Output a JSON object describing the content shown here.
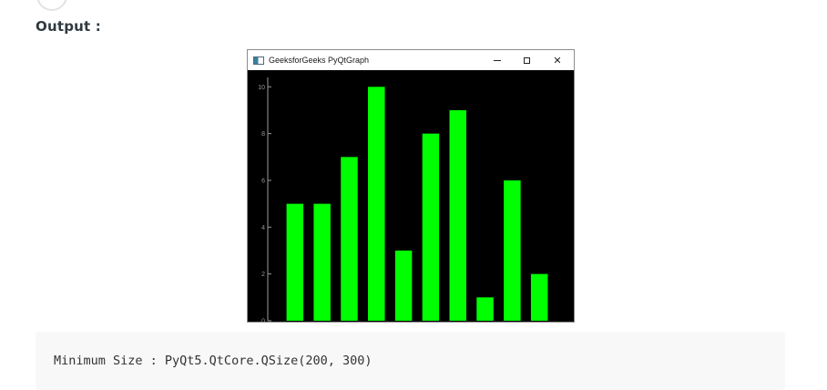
{
  "page": {
    "output_label": "Output :"
  },
  "window": {
    "title": "GeeksforGeeks PyQtGraph",
    "icon": "app-window-icon",
    "controls": {
      "minimize": "minimize-icon",
      "maximize": "maximize-icon",
      "close_label": "✕"
    }
  },
  "chart_data": {
    "type": "bar",
    "x": [
      1,
      2,
      3,
      4,
      5,
      6,
      7,
      8,
      9,
      10
    ],
    "values": [
      5,
      5,
      7,
      10,
      3,
      8,
      9,
      1,
      6,
      2
    ],
    "xlim": [
      0,
      11
    ],
    "ylim": [
      0,
      10.4
    ],
    "yticks": [
      0,
      2,
      4,
      6,
      8,
      10
    ],
    "bar_color": "#00ff00",
    "background": "#000000",
    "grid": false
  },
  "code": {
    "line": "Minimum Size : PyQt5.QtCore.QSize(200, 300)"
  }
}
